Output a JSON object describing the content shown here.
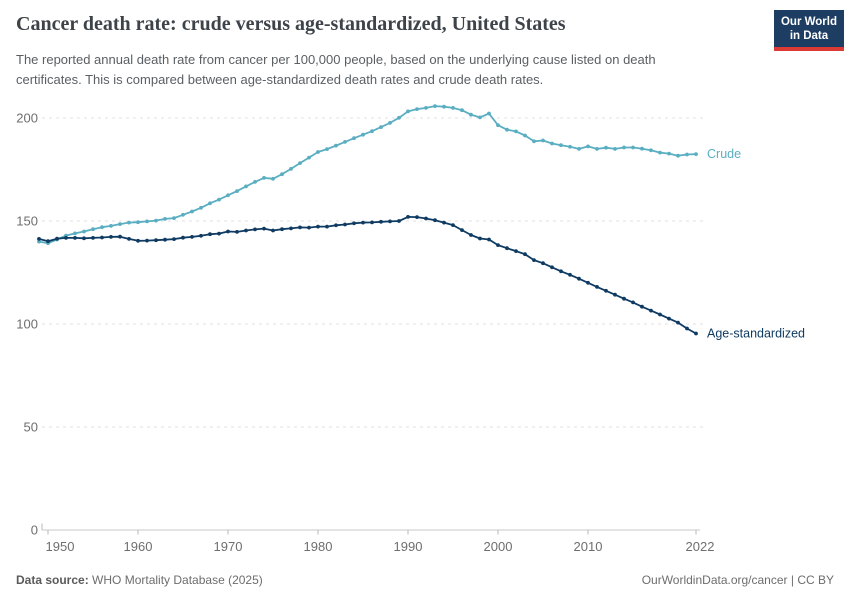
{
  "header": {
    "title": "Cancer death rate: crude versus age-standardized, United States",
    "subtitle": "The reported annual death rate from cancer per 100,000 people, based on the underlying cause listed on death certificates. This is compared between age-standardized death rates and crude death rates.",
    "logo": {
      "line1": "Our World",
      "line2": "in Data",
      "bg": "#1d3d63",
      "accent": "#dc3a34"
    }
  },
  "chart_data": {
    "type": "line",
    "title": "Cancer death rate: crude versus age-standardized, United States",
    "unit": "deaths per 100,000 people",
    "x": [
      1949,
      1950,
      1951,
      1952,
      1953,
      1954,
      1955,
      1956,
      1957,
      1958,
      1959,
      1960,
      1961,
      1962,
      1963,
      1964,
      1965,
      1966,
      1967,
      1968,
      1969,
      1970,
      1971,
      1972,
      1973,
      1974,
      1975,
      1976,
      1977,
      1978,
      1979,
      1980,
      1981,
      1982,
      1983,
      1984,
      1985,
      1986,
      1987,
      1988,
      1989,
      1990,
      1991,
      1992,
      1993,
      1994,
      1995,
      1996,
      1997,
      1998,
      1999,
      2000,
      2001,
      2002,
      2003,
      2004,
      2005,
      2006,
      2007,
      2008,
      2009,
      2010,
      2011,
      2012,
      2013,
      2014,
      2015,
      2016,
      2017,
      2018,
      2019,
      2020,
      2021,
      2022
    ],
    "series": [
      {
        "name": "Crude",
        "color": "#5aaec2",
        "values": [
          140.0,
          139.2,
          141.0,
          142.9,
          144.0,
          144.9,
          146.0,
          147.0,
          147.6,
          148.5,
          149.2,
          149.4,
          149.8,
          150.2,
          151.0,
          151.4,
          153.0,
          154.6,
          156.4,
          158.6,
          160.4,
          162.5,
          164.5,
          166.8,
          169.0,
          170.9,
          170.5,
          172.7,
          175.3,
          178.1,
          180.8,
          183.5,
          184.9,
          186.6,
          188.4,
          190.2,
          191.9,
          193.6,
          195.6,
          197.6,
          200.1,
          203.2,
          204.3,
          204.9,
          205.8,
          205.5,
          204.9,
          203.8,
          201.6,
          200.3,
          202.2,
          196.5,
          194.3,
          193.5,
          191.5,
          188.7,
          189.1,
          187.6,
          186.8,
          186.0,
          185.0,
          186.2,
          185.0,
          185.6,
          185.0,
          185.7,
          185.7,
          185.1,
          184.3,
          183.2,
          182.7,
          181.7,
          182.3,
          182.5
        ]
      },
      {
        "name": "Age-standardized",
        "color": "#0f3b62",
        "values": [
          141.3,
          140.2,
          141.4,
          141.8,
          141.8,
          141.6,
          141.8,
          142.0,
          142.3,
          142.4,
          141.3,
          140.4,
          140.5,
          140.7,
          140.9,
          141.2,
          141.9,
          142.3,
          142.8,
          143.6,
          143.9,
          144.9,
          144.7,
          145.4,
          145.9,
          146.3,
          145.4,
          146.0,
          146.4,
          146.9,
          146.8,
          147.3,
          147.3,
          147.9,
          148.3,
          148.9,
          149.2,
          149.3,
          149.6,
          149.8,
          150.0,
          152.0,
          151.9,
          151.2,
          150.4,
          149.2,
          148.0,
          145.6,
          143.2,
          141.5,
          141.0,
          138.3,
          136.8,
          135.4,
          133.9,
          131.0,
          129.5,
          127.5,
          125.6,
          123.9,
          122.0,
          120.0,
          118.0,
          116.1,
          114.2,
          112.3,
          110.5,
          108.4,
          106.5,
          104.6,
          102.6,
          100.7,
          97.8,
          95.4
        ]
      }
    ],
    "ylim": [
      0,
      210
    ],
    "yticks": [
      0,
      50,
      100,
      150,
      200
    ],
    "xticks": [
      1950,
      1960,
      1970,
      1980,
      1990,
      2000,
      2010,
      2022
    ],
    "grid": "horizontal-dashed",
    "legend_position": "line-end-labels"
  },
  "footer": {
    "source_label": "Data source:",
    "source_value": " WHO Mortality Database (2025)",
    "right_text": "OurWorldinData.org/cancer | CC BY"
  }
}
